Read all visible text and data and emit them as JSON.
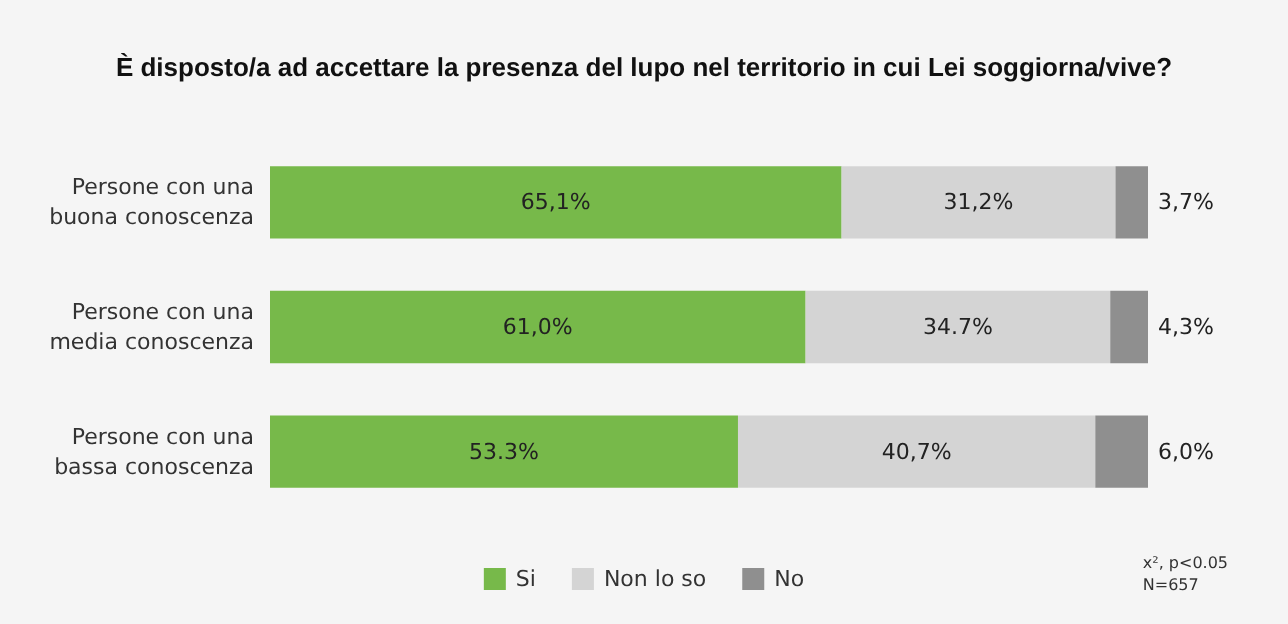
{
  "chart_data": {
    "type": "bar",
    "orientation": "horizontal",
    "stacked": true,
    "title": "È disposto/a ad accettare la presenza del lupo nel territorio in cui Lei soggiorna/vive?",
    "categories": [
      "Persone con una\nbuona conoscenza",
      "Persone con una\nmedia conoscenza",
      "Persone con una\nbassa conoscenza"
    ],
    "series": [
      {
        "name": "Si",
        "color": "#77b94a",
        "values": [
          65.1,
          61.0,
          53.3
        ],
        "value_labels": [
          "65,1%",
          "61,0%",
          "53.3%"
        ]
      },
      {
        "name": "Non lo so",
        "color": "#d4d4d4",
        "values": [
          31.2,
          34.7,
          40.7
        ],
        "value_labels": [
          "31,2%",
          "34.7%",
          "40,7%"
        ]
      },
      {
        "name": "No",
        "color": "#8f8f8f",
        "values": [
          3.7,
          4.3,
          6.0
        ],
        "value_labels": [
          "3,7%",
          "4,3%",
          "6,0%"
        ]
      }
    ],
    "annotations": [
      "x², p<0.05",
      "N=657"
    ],
    "legend": "bottom"
  }
}
